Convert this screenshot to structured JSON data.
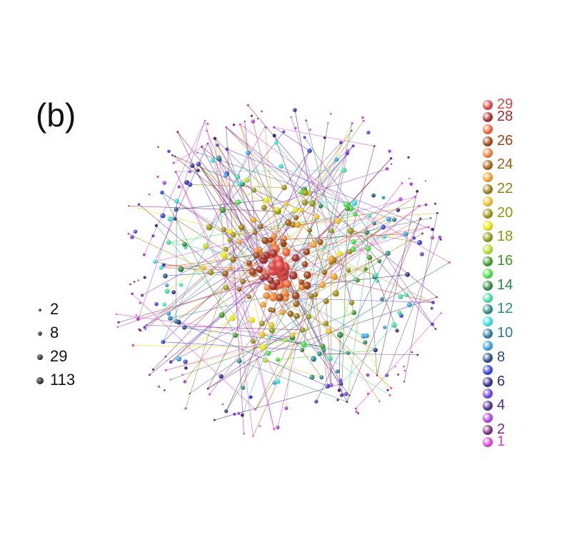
{
  "panel_label": "(b)",
  "size_legend": [
    {
      "label": "2",
      "degree": 2
    },
    {
      "label": "8",
      "degree": 8
    },
    {
      "label": "29",
      "degree": 29
    },
    {
      "label": "113",
      "degree": 113
    }
  ],
  "level_legend": [
    {
      "level": 29,
      "label": "29",
      "color": "#e04040"
    },
    {
      "level": 28,
      "label": "28",
      "color": "#a52a2a"
    },
    {
      "level": 27,
      "label": "",
      "color": "#f06030"
    },
    {
      "level": 26,
      "label": "26",
      "color": "#a04010"
    },
    {
      "level": 25,
      "label": "",
      "color": "#f08030"
    },
    {
      "level": 24,
      "label": "24",
      "color": "#a06010"
    },
    {
      "level": 23,
      "label": "",
      "color": "#f0a020"
    },
    {
      "level": 22,
      "label": "22",
      "color": "#9a7a10"
    },
    {
      "level": 21,
      "label": "",
      "color": "#f0c020"
    },
    {
      "level": 20,
      "label": "20",
      "color": "#9a9010"
    },
    {
      "level": 19,
      "label": "",
      "color": "#e8e800"
    },
    {
      "level": 18,
      "label": "18",
      "color": "#8a9a10"
    },
    {
      "level": 17,
      "label": "",
      "color": "#b0e020"
    },
    {
      "level": 16,
      "label": "16",
      "color": "#3a9a20"
    },
    {
      "level": 15,
      "label": "",
      "color": "#40e040"
    },
    {
      "level": 14,
      "label": "14",
      "color": "#2a8a40"
    },
    {
      "level": 13,
      "label": "",
      "color": "#40e0a0"
    },
    {
      "level": 12,
      "label": "12",
      "color": "#2a8a80"
    },
    {
      "level": 11,
      "label": "",
      "color": "#30e0e0"
    },
    {
      "level": 10,
      "label": "10",
      "color": "#2a7a9a"
    },
    {
      "level": 9,
      "label": "",
      "color": "#30a0e0"
    },
    {
      "level": 8,
      "label": "8",
      "color": "#2a4a8a"
    },
    {
      "level": 7,
      "label": "",
      "color": "#3040e0"
    },
    {
      "level": 6,
      "label": "6",
      "color": "#2a2a8a"
    },
    {
      "level": 5,
      "label": "",
      "color": "#6a40e0"
    },
    {
      "level": 4,
      "label": "4",
      "color": "#4a2a8a"
    },
    {
      "level": 3,
      "label": "",
      "color": "#b040e0"
    },
    {
      "level": 2,
      "label": "2",
      "color": "#7a2a7a"
    },
    {
      "level": 1,
      "label": "1",
      "color": "#e040e0"
    }
  ]
}
